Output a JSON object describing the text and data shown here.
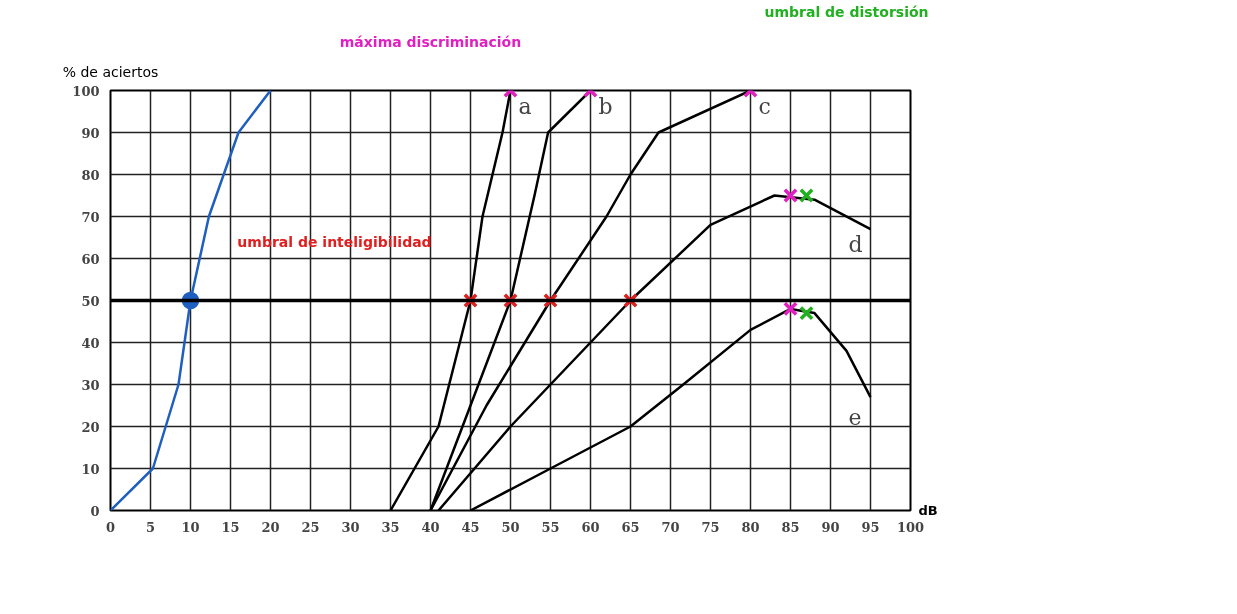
{
  "chart_data": {
    "type": "line",
    "xlabel": "dB",
    "ylabel": "% de aciertos",
    "xlim": [
      0,
      100
    ],
    "ylim": [
      0,
      100
    ],
    "xticks": [
      0,
      5,
      10,
      15,
      20,
      25,
      30,
      35,
      40,
      45,
      50,
      55,
      60,
      65,
      70,
      75,
      80,
      85,
      90,
      95,
      100
    ],
    "yticks": [
      0,
      10,
      20,
      30,
      40,
      50,
      60,
      70,
      80,
      90,
      100
    ],
    "grid": true,
    "line_style": "solid",
    "ref_lines": [
      {
        "axis": "y",
        "value": 50,
        "color": "#000000"
      }
    ],
    "series": [
      {
        "color": "#1f5fbf",
        "x": [
          0,
          5.3,
          8.5,
          10,
          12.3,
          16,
          20
        ],
        "values": [
          0,
          10,
          30,
          50,
          70,
          90,
          100
        ]
      },
      {
        "name": "a",
        "color": "#000000",
        "x": [
          35,
          41,
          45,
          46.5,
          49,
          50
        ],
        "values": [
          0,
          20,
          50,
          70,
          90,
          100
        ]
      },
      {
        "name": "b",
        "color": "#000000",
        "x": [
          40,
          45,
          50,
          53,
          54.7,
          60
        ],
        "values": [
          0,
          25,
          50,
          75,
          90,
          100
        ]
      },
      {
        "name": "c",
        "color": "#000000",
        "x": [
          40,
          47,
          55,
          62,
          65,
          68.5,
          80
        ],
        "values": [
          0,
          25,
          50,
          70,
          80,
          90,
          100
        ]
      },
      {
        "name": "d",
        "color": "#000000",
        "x": [
          41,
          50,
          65,
          75,
          83,
          88,
          95
        ],
        "values": [
          0,
          20,
          50,
          68,
          75,
          74,
          67
        ]
      },
      {
        "name": "e",
        "color": "#000000",
        "x": [
          45,
          55,
          65,
          71.6,
          80,
          85,
          88,
          92,
          95
        ],
        "values": [
          0,
          10,
          20,
          30,
          43,
          48,
          47,
          38,
          27
        ]
      },
      {
        "type": "scatter",
        "marker": "circle",
        "color": "#1f5fbf",
        "x": [
          10
        ],
        "values": [
          50
        ]
      },
      {
        "type": "scatter",
        "marker": "cross",
        "name": "máxima discriminación",
        "color": "#e020c0",
        "x": [
          50,
          60,
          80,
          85,
          85
        ],
        "values": [
          100,
          100,
          100,
          75,
          48
        ]
      },
      {
        "type": "scatter",
        "marker": "cross",
        "name": "umbral de inteligibilidad",
        "color": "#e02020",
        "x": [
          45,
          50,
          55,
          65
        ],
        "values": [
          50,
          50,
          50,
          50
        ]
      },
      {
        "type": "scatter",
        "marker": "cross",
        "name": "umbral de distorsión",
        "color": "#20b020",
        "x": [
          87,
          87
        ],
        "values": [
          75,
          47
        ]
      }
    ]
  }
}
